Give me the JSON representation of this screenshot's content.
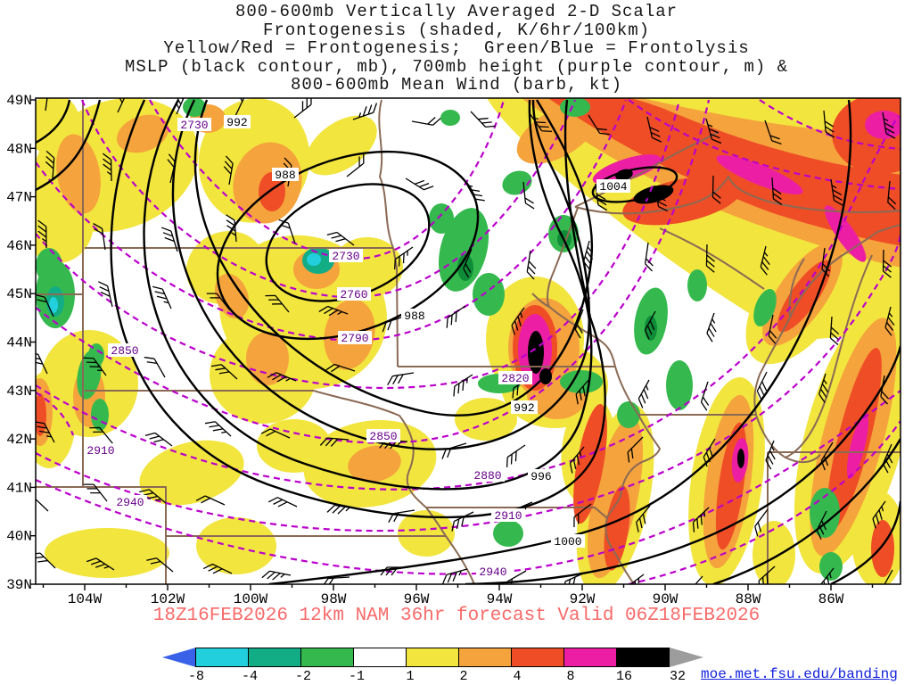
{
  "title": {
    "lines": [
      "800-600mb Vertically Averaged 2-D Scalar",
      "Frontogenesis (shaded, K/6hr/100km)",
      "Yellow/Red = Frontogenesis;  Green/Blue = Frontolysis",
      "MSLP (black contour, mb), 700mb height (purple contour, m) &",
      "800-600mb Mean Wind (barb, kt)"
    ]
  },
  "axes": {
    "lat_labels": [
      "49N",
      "48N",
      "47N",
      "46N",
      "45N",
      "44N",
      "43N",
      "42N",
      "41N",
      "40N",
      "39N"
    ],
    "lon_labels": [
      "104W",
      "102W",
      "100W",
      "98W",
      "96W",
      "94W",
      "92W",
      "90W",
      "88W",
      "86W"
    ]
  },
  "contour_labels": [
    "2730",
    "992",
    "988",
    "1004",
    "2730",
    "2760",
    "988",
    "2790",
    "2850",
    "2820",
    "992",
    "2850",
    "2910",
    "2880",
    "996",
    "2940",
    "2910",
    "1000",
    "2940"
  ],
  "footer": {
    "forecast": "18Z16FEB2026 12km NAM 36hr forecast Valid 06Z18FEB2026",
    "url": "moe.met.fsu.edu/banding"
  },
  "colorbar": {
    "tick_labels": [
      "-8",
      "-4",
      "-2",
      "-1",
      "1",
      "2",
      "4",
      "8",
      "16",
      "32"
    ],
    "segment_colors": [
      "#22cfdd",
      "#12ad85",
      "#35b94e",
      "#ffffff",
      "#f2e53e",
      "#f5a33c",
      "#ef4d26",
      "#ec1fa4",
      "#000000"
    ],
    "left_arrow_color": "#3a62e8",
    "right_arrow_color": "#9c9c9c"
  },
  "colors": {
    "mslp_contour": "#000000",
    "height_700mb_contour": "#bb00cc",
    "state_border": "#8a6a55",
    "forecast_text": "#f86a6a",
    "link_text": "#1322dd"
  }
}
